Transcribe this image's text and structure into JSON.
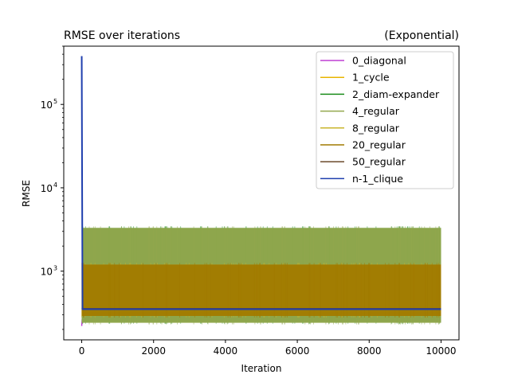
{
  "chart_data": {
    "type": "line",
    "title": "RMSE over iterations",
    "subtitle": "(Exponential)",
    "xlabel": "Iteration",
    "ylabel": "RMSE",
    "xlim": [
      -500,
      10500
    ],
    "ylim": [
      150,
      500000
    ],
    "yscale": "log",
    "grid": false,
    "legend_position": "top-right",
    "x_ticks": [
      0,
      2000,
      4000,
      6000,
      8000,
      10000
    ],
    "x_tick_labels": [
      "0",
      "2000",
      "4000",
      "6000",
      "8000",
      "10000"
    ],
    "y_ticks": [
      1000,
      10000,
      100000
    ],
    "y_tick_labels": [
      "10",
      "10",
      "10"
    ],
    "y_tick_exponents": [
      "3",
      "4",
      "5"
    ],
    "series": [
      {
        "name": "0_diagonal",
        "color": "#bf3fd4",
        "style": "flat",
        "start": 220,
        "value": 350
      },
      {
        "name": "1_cycle",
        "color": "#e8b500",
        "style": "band",
        "low": 290,
        "high": 1200
      },
      {
        "name": "2_diam-expander",
        "color": "#1a8c1a",
        "style": "band",
        "low": 245,
        "high": 3300
      },
      {
        "name": "4_regular",
        "color": "#93a84e",
        "style": "band",
        "low": 240,
        "high": 3300
      },
      {
        "name": "8_regular",
        "color": "#c9b52c",
        "style": "band",
        "low": 290,
        "high": 1200
      },
      {
        "name": "20_regular",
        "color": "#a07a00",
        "style": "band",
        "low": 290,
        "high": 1200
      },
      {
        "name": "50_regular",
        "color": "#6b4a2b",
        "style": "flat",
        "start": 360,
        "value": 355
      },
      {
        "name": "n-1_clique",
        "color": "#1f3fae",
        "style": "spike",
        "start": 380000,
        "value": 350
      }
    ],
    "x_range": [
      0,
      10000
    ]
  }
}
